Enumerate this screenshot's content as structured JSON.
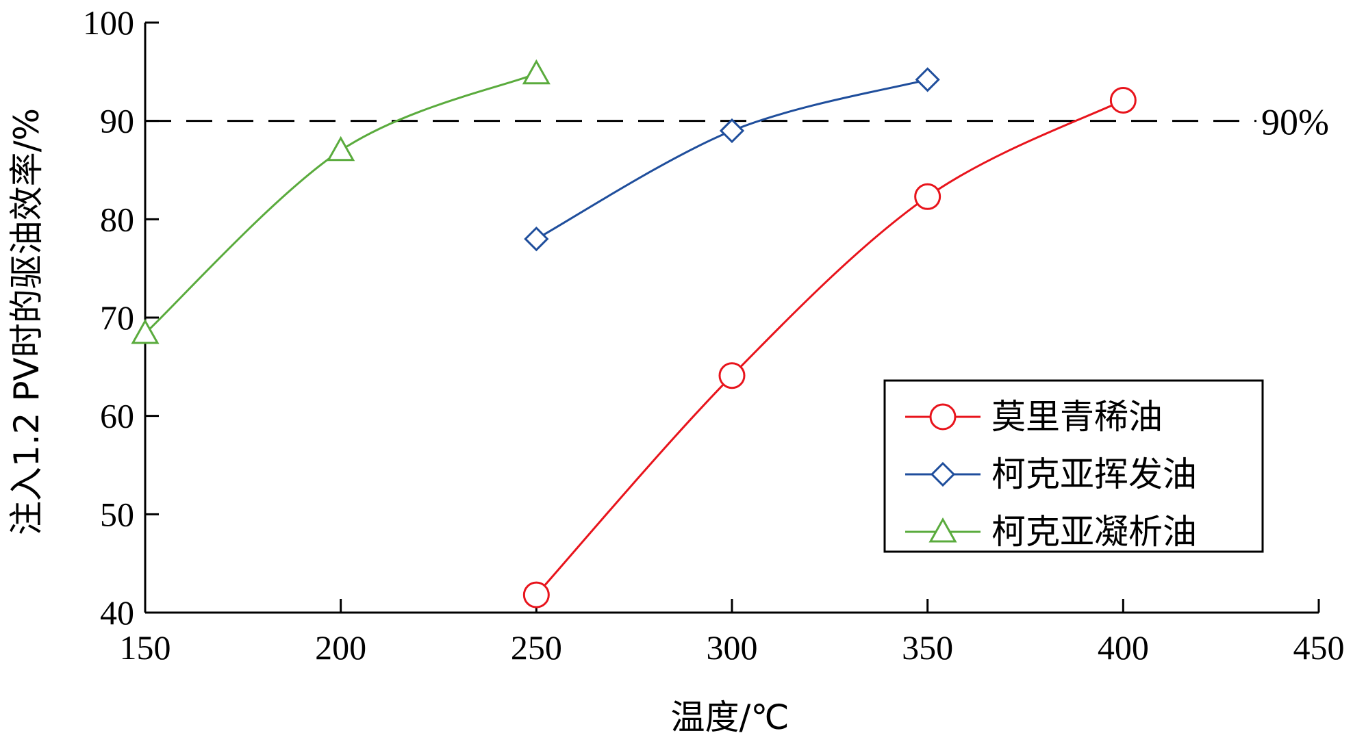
{
  "chart_data": {
    "type": "line",
    "title": "",
    "xlabel": "温度/℃",
    "ylabel": "注入1.2 PV时的驱油效率/%",
    "xlim": [
      150,
      450
    ],
    "ylim": [
      40,
      100
    ],
    "xticks": [
      150,
      200,
      250,
      300,
      350,
      400,
      450
    ],
    "yticks": [
      40,
      50,
      60,
      70,
      80,
      90,
      100
    ],
    "grid": false,
    "legend_position": "bottom-right",
    "reference_line": {
      "y": 90,
      "label": "90%",
      "style": "dashed",
      "color": "#000000"
    },
    "series": [
      {
        "name": "莫里青稀油",
        "marker": "circle",
        "color": "#e8141c",
        "x": [
          250,
          300,
          350,
          400
        ],
        "y": [
          41.8,
          64.1,
          82.3,
          92.1
        ]
      },
      {
        "name": "柯克亚挥发油",
        "marker": "diamond",
        "color": "#1f4e9c",
        "x": [
          250,
          300,
          350
        ],
        "y": [
          78.0,
          89.0,
          94.2
        ]
      },
      {
        "name": "柯克亚凝析油",
        "marker": "triangle",
        "color": "#5aab3d",
        "x": [
          150,
          200,
          250
        ],
        "y": [
          68.4,
          87.0,
          94.8
        ]
      }
    ]
  }
}
